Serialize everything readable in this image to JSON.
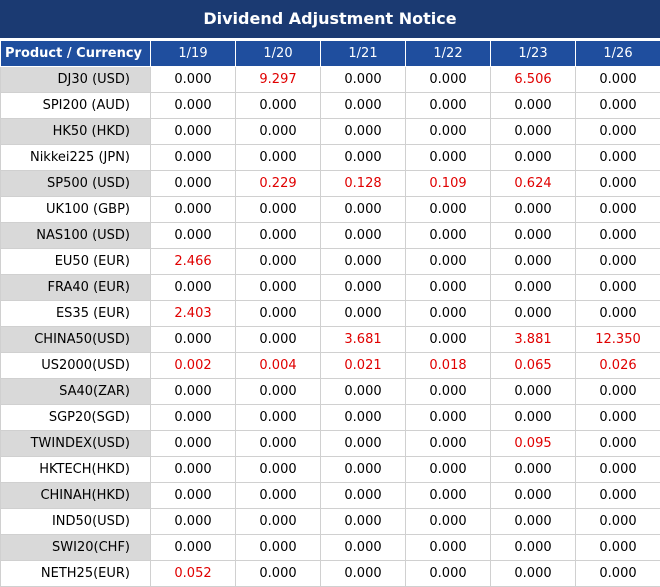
{
  "header": {
    "title": "Dividend Adjustment Notice"
  },
  "table": {
    "columns": [
      "Product / Currency",
      "1/19",
      "1/20",
      "1/21",
      "1/22",
      "1/23",
      "1/26"
    ],
    "rows": [
      [
        "DJ30 (USD)",
        "0.000",
        "9.297",
        "0.000",
        "0.000",
        "6.506",
        "0.000"
      ],
      [
        "SPI200 (AUD)",
        "0.000",
        "0.000",
        "0.000",
        "0.000",
        "0.000",
        "0.000"
      ],
      [
        "HK50 (HKD)",
        "0.000",
        "0.000",
        "0.000",
        "0.000",
        "0.000",
        "0.000"
      ],
      [
        "Nikkei225 (JPN)",
        "0.000",
        "0.000",
        "0.000",
        "0.000",
        "0.000",
        "0.000"
      ],
      [
        "SP500 (USD)",
        "0.000",
        "0.229",
        "0.128",
        "0.109",
        "0.624",
        "0.000"
      ],
      [
        "UK100 (GBP)",
        "0.000",
        "0.000",
        "0.000",
        "0.000",
        "0.000",
        "0.000"
      ],
      [
        "NAS100 (USD)",
        "0.000",
        "0.000",
        "0.000",
        "0.000",
        "0.000",
        "0.000"
      ],
      [
        "EU50 (EUR)",
        "2.466",
        "0.000",
        "0.000",
        "0.000",
        "0.000",
        "0.000"
      ],
      [
        "FRA40 (EUR)",
        "0.000",
        "0.000",
        "0.000",
        "0.000",
        "0.000",
        "0.000"
      ],
      [
        "ES35 (EUR)",
        "2.403",
        "0.000",
        "0.000",
        "0.000",
        "0.000",
        "0.000"
      ],
      [
        "CHINA50(USD)",
        "0.000",
        "0.000",
        "3.681",
        "0.000",
        "3.881",
        "12.350"
      ],
      [
        "US2000(USD)",
        "0.002",
        "0.004",
        "0.021",
        "0.018",
        "0.065",
        "0.026"
      ],
      [
        "SA40(ZAR)",
        "0.000",
        "0.000",
        "0.000",
        "0.000",
        "0.000",
        "0.000"
      ],
      [
        "SGP20(SGD)",
        "0.000",
        "0.000",
        "0.000",
        "0.000",
        "0.000",
        "0.000"
      ],
      [
        "TWINDEX(USD)",
        "0.000",
        "0.000",
        "0.000",
        "0.000",
        "0.095",
        "0.000"
      ],
      [
        "HKTECH(HKD)",
        "0.000",
        "0.000",
        "0.000",
        "0.000",
        "0.000",
        "0.000"
      ],
      [
        "CHINAH(HKD)",
        "0.000",
        "0.000",
        "0.000",
        "0.000",
        "0.000",
        "0.000"
      ],
      [
        "IND50(USD)",
        "0.000",
        "0.000",
        "0.000",
        "0.000",
        "0.000",
        "0.000"
      ],
      [
        "SWI20(CHF)",
        "0.000",
        "0.000",
        "0.000",
        "0.000",
        "0.000",
        "0.000"
      ],
      [
        "NETH25(EUR)",
        "0.052",
        "0.000",
        "0.000",
        "0.000",
        "0.000",
        "0.000"
      ]
    ]
  }
}
